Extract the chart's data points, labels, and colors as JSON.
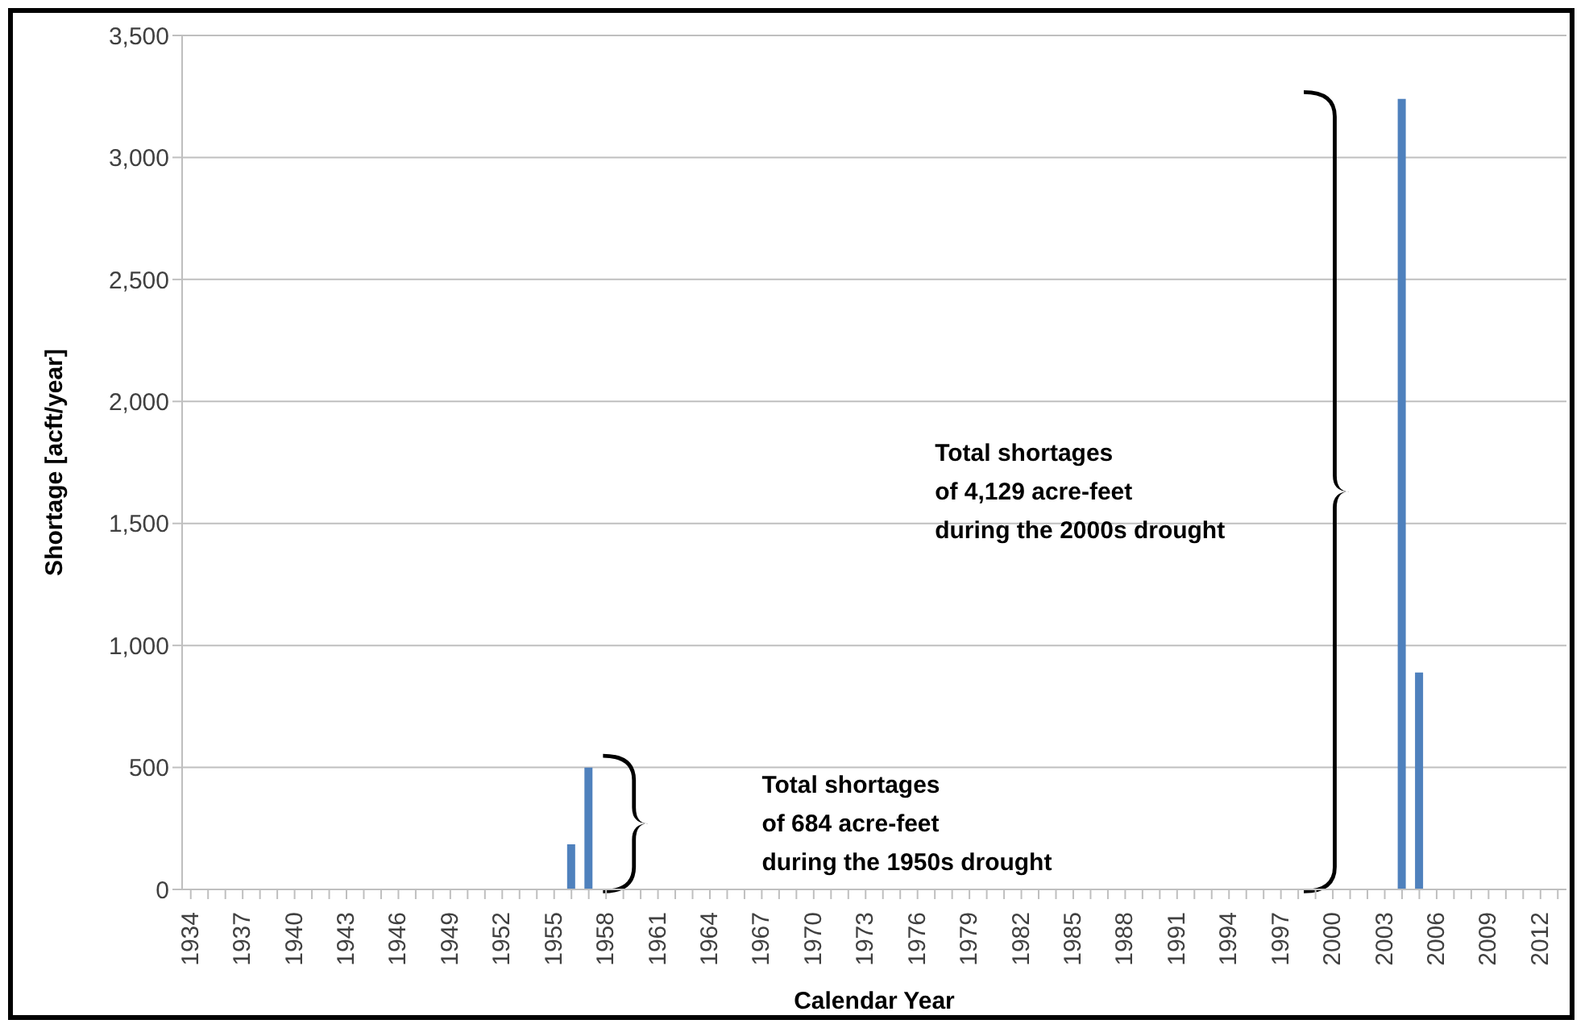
{
  "chart_data": {
    "type": "bar",
    "xlabel": "Calendar Year",
    "ylabel": "Shortage [acft/year]",
    "categories": [
      "1934",
      null,
      null,
      "1937",
      null,
      null,
      "1940",
      null,
      null,
      "1943",
      null,
      null,
      "1946",
      null,
      null,
      "1949",
      null,
      null,
      "1952",
      null,
      null,
      "1955",
      null,
      null,
      "1958",
      null,
      null,
      "1961",
      null,
      null,
      "1964",
      null,
      null,
      "1967",
      null,
      null,
      "1970",
      null,
      null,
      "1973",
      null,
      null,
      "1976",
      null,
      null,
      "1979",
      null,
      null,
      "1982",
      null,
      null,
      "1985",
      null,
      null,
      "1988",
      null,
      null,
      "1991",
      null,
      null,
      "1994",
      null,
      null,
      "1997",
      null,
      null,
      "2000",
      null,
      null,
      "2003",
      null,
      null,
      "2006",
      null,
      null,
      "2009",
      null,
      null,
      "2012",
      null
    ],
    "values": [
      0,
      0,
      0,
      0,
      0,
      0,
      0,
      0,
      0,
      0,
      0,
      0,
      0,
      0,
      0,
      0,
      0,
      0,
      0,
      0,
      0,
      0,
      185,
      499,
      0,
      0,
      0,
      0,
      0,
      0,
      0,
      0,
      0,
      0,
      0,
      0,
      0,
      0,
      0,
      0,
      0,
      0,
      0,
      0,
      0,
      0,
      0,
      0,
      0,
      0,
      0,
      0,
      0,
      0,
      0,
      0,
      0,
      0,
      0,
      0,
      0,
      0,
      0,
      0,
      0,
      0,
      0,
      0,
      0,
      0,
      3240,
      889,
      0,
      0,
      0,
      0,
      0,
      0,
      0,
      0
    ],
    "color": "#4f81bd",
    "ylim": [
      0,
      3500
    ],
    "yticks": [
      0,
      500,
      {
        "value": 1000,
        "label": "1,000"
      },
      {
        "value": 1500,
        "label": "1,500"
      },
      {
        "value": 2000,
        "label": "2,000"
      },
      {
        "value": 2500,
        "label": "2,500"
      },
      {
        "value": 3000,
        "label": "3,000"
      },
      {
        "value": 3500,
        "label": "3,500"
      }
    ],
    "grid": "y",
    "annotations": [
      "Total shortages\nof 684 acre-feet\nduring the 1950s drought",
      "Total shortages\nof 4,129 acre-feet\nduring the 2000s drought"
    ]
  }
}
